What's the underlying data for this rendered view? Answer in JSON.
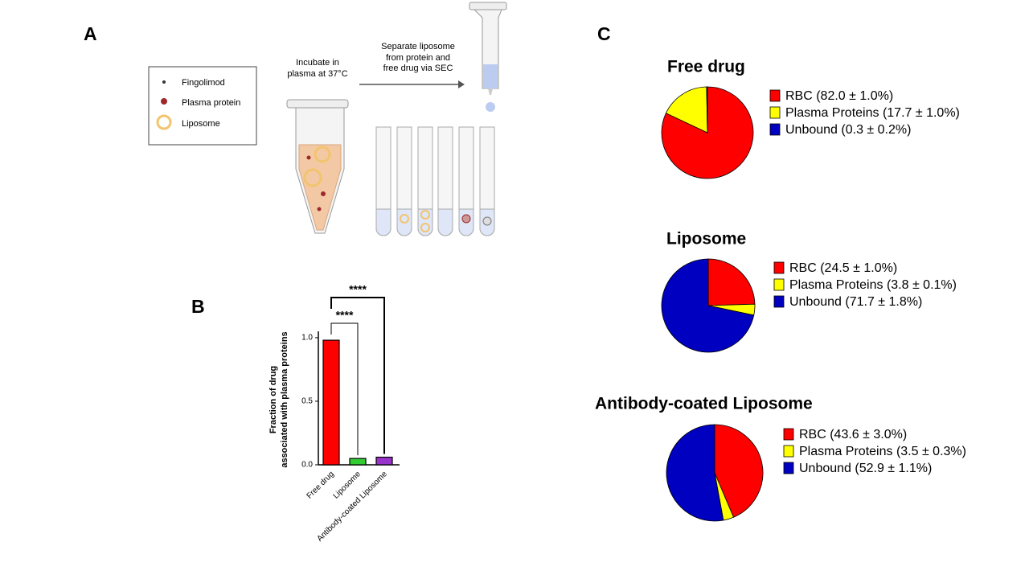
{
  "panel_labels": [
    "A",
    "B",
    "C"
  ],
  "diagram": {
    "legend": [
      "Fingolimod",
      "Plasma protein",
      "Liposome"
    ],
    "step1": [
      "Incubate in",
      "plasma at 37°C"
    ],
    "step2": [
      "Separate liposome",
      "from protein and",
      "free drug via SEC"
    ]
  },
  "chart_data": [
    {
      "type": "bar",
      "y_label": [
        "Fraction of drug",
        "associated with plasma proteins"
      ],
      "categories": [
        "Free drug",
        "Liposome",
        "Antibody-coated Liposome"
      ],
      "values": [
        0.98,
        0.05,
        0.06
      ],
      "colors": [
        "#ff0000",
        "#33cc33",
        "#9933cc"
      ],
      "ylim": [
        0,
        1.05
      ],
      "yticks": [
        {
          "value": 0,
          "label": "0.0"
        },
        {
          "value": 0.5,
          "label": "0.5"
        },
        {
          "value": 1,
          "label": "1.0"
        }
      ],
      "annotations": [
        "****",
        "****"
      ]
    },
    {
      "type": "pie",
      "title": "Free drug",
      "values": [
        82.0,
        17.7,
        0.3
      ],
      "value_labels": [
        "RBC (82.0 ± 1.0%)",
        "Plasma Proteins (17.7 ± 1.0%)",
        "Unbound (0.3 ± 0.2%)"
      ],
      "colors": [
        "#ff0000",
        "#ffff00",
        "#0000c0"
      ]
    },
    {
      "type": "pie",
      "title": "Liposome",
      "values": [
        24.5,
        3.8,
        71.7
      ],
      "value_labels": [
        "RBC (24.5 ± 1.0%)",
        "Plasma Proteins (3.8 ± 0.1%)",
        "Unbound (71.7 ± 1.8%)"
      ],
      "colors": [
        "#ff0000",
        "#ffff00",
        "#0000c0"
      ]
    },
    {
      "type": "pie",
      "title": "Antibody-coated Liposome",
      "values": [
        43.6,
        3.5,
        52.9
      ],
      "value_labels": [
        "RBC (43.6 ± 3.0%)",
        "Plasma Proteins (3.5 ± 0.3%)",
        "Unbound (52.9 ± 1.1%)"
      ],
      "colors": [
        "#ff0000",
        "#ffff00",
        "#0000c0"
      ]
    }
  ]
}
